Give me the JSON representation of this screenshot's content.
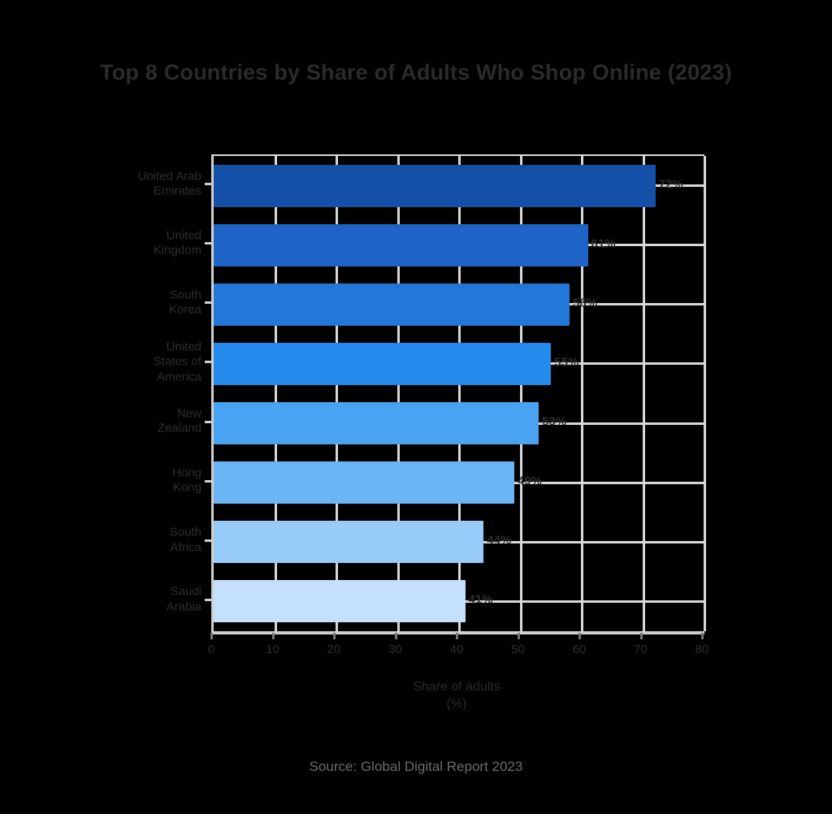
{
  "page": {
    "background_color": "#000000"
  },
  "chart_data": {
    "type": "bar",
    "orientation": "horizontal",
    "title": "Top 8 Countries by Share of Adults Who Shop Online (2023)",
    "xlabel": "Share of adults\n(%)",
    "ylabel": "",
    "source_caption": "Source: Global Digital Report 2023",
    "categories": [
      "United Arab\nEmirates",
      "United\nKingdom",
      "South\nKorea",
      "United\nStates of\nAmerica",
      "New\nZealand",
      "Hong\nKong",
      "South\nAfrica",
      "Saudi\nArabia"
    ],
    "values": [
      72,
      61,
      58,
      55,
      53,
      49,
      44,
      41
    ],
    "value_labels": [
      "72%",
      "61%",
      "58%",
      "55%",
      "53%",
      "49%",
      "44%",
      "41%"
    ],
    "bar_colors": [
      "#1450a8",
      "#1d64c6",
      "#2277d8",
      "#2389ea",
      "#4aa3f2",
      "#6cb5f4",
      "#97cbf8",
      "#c4e0fa"
    ],
    "xlim": [
      0,
      80
    ],
    "x_ticks": [
      0,
      10,
      20,
      30,
      40,
      50,
      60,
      70,
      80
    ],
    "x_tick_labels": [
      "0",
      "10",
      "20",
      "30",
      "40",
      "50",
      "60",
      "70",
      "80"
    ],
    "grid": true,
    "grid_color": "#d8d8d8",
    "axis_color": "#cfcfcf",
    "text_color": "#2b2b2b",
    "caption_color": "#6b6b6b",
    "legend": "none"
  }
}
